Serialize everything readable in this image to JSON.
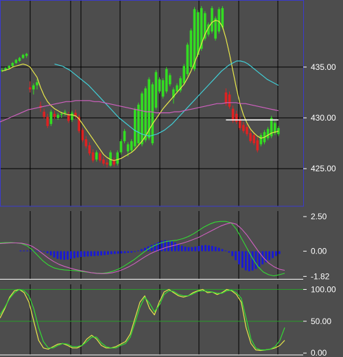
{
  "colors": {
    "background": "#4d4d4d",
    "grid": "#000000",
    "frame": "#3a3ad0",
    "tick_text": "#ffffff",
    "candle_up": "#33dd22",
    "candle_down": "#dd2222",
    "ma_fast": "#e8e84a",
    "ma_mid": "#40d0d8",
    "ma_slow": "#d060c0",
    "macd_line": "#d060c0",
    "macd_signal": "#33dd33",
    "macd_hist": "#1818d8",
    "stoch_k": "#e8e84a",
    "stoch_d": "#33dd33",
    "level_line": "#2aa02a",
    "hline": "#ffffff"
  },
  "chart_data": [
    {
      "type": "candlestick",
      "panel": "price",
      "ylim": [
        421.3,
        441.6
      ],
      "yticks": [
        {
          "value": 425,
          "label": "425.00"
        },
        {
          "value": 430,
          "label": "430.00"
        },
        {
          "value": 435,
          "label": "435.00"
        }
      ],
      "grid": true,
      "candles": [
        [
          434.6,
          434.9,
          434.5,
          434.7
        ],
        [
          434.7,
          435.0,
          434.6,
          434.9
        ],
        [
          434.9,
          435.2,
          434.8,
          435.1
        ],
        [
          435.1,
          435.5,
          435.0,
          435.4
        ],
        [
          435.4,
          435.8,
          435.3,
          435.7
        ],
        [
          435.6,
          436.0,
          435.5,
          435.9
        ],
        [
          435.9,
          436.3,
          435.8,
          436.2
        ],
        [
          436.1,
          436.4,
          435.9,
          436.3
        ],
        [
          433.0,
          433.6,
          432.5,
          432.8
        ],
        [
          432.8,
          433.4,
          432.3,
          433.2
        ],
        [
          433.2,
          433.8,
          432.8,
          433.5
        ],
        [
          431.2,
          431.6,
          430.6,
          431.0
        ],
        [
          430.6,
          430.9,
          429.9,
          430.1
        ],
        [
          430.1,
          430.4,
          429.0,
          429.2
        ],
        [
          429.4,
          430.8,
          429.2,
          430.6
        ],
        [
          430.4,
          430.7,
          429.9,
          430.1
        ],
        [
          430.0,
          430.5,
          429.8,
          430.3
        ],
        [
          430.3,
          430.6,
          430.0,
          430.4
        ],
        [
          430.5,
          430.8,
          430.2,
          430.6
        ],
        [
          430.3,
          430.6,
          429.5,
          429.7
        ],
        [
          429.8,
          430.7,
          429.6,
          430.5
        ],
        [
          430.5,
          430.8,
          429.9,
          430.2
        ],
        [
          430.1,
          430.3,
          428.5,
          428.7
        ],
        [
          428.8,
          429.0,
          427.6,
          427.8
        ],
        [
          427.9,
          428.2,
          427.0,
          427.2
        ],
        [
          427.3,
          427.6,
          426.3,
          426.5
        ],
        [
          426.6,
          426.9,
          425.6,
          425.8
        ],
        [
          425.9,
          426.8,
          425.7,
          426.6
        ],
        [
          426.5,
          426.7,
          425.6,
          425.8
        ],
        [
          425.9,
          426.2,
          425.3,
          425.5
        ],
        [
          425.6,
          425.9,
          425.1,
          425.4
        ],
        [
          425.3,
          426.8,
          425.2,
          426.6
        ],
        [
          425.8,
          426.1,
          425.2,
          425.4
        ],
        [
          425.5,
          426.8,
          425.3,
          426.6
        ],
        [
          426.6,
          427.9,
          426.4,
          427.7
        ],
        [
          427.7,
          428.9,
          427.5,
          428.7
        ],
        [
          426.7,
          427.6,
          426.2,
          427.4
        ],
        [
          426.8,
          427.9,
          426.6,
          427.7
        ],
        [
          427.2,
          431.0,
          427.0,
          430.8
        ],
        [
          427.5,
          431.5,
          427.3,
          431.3
        ],
        [
          427.4,
          432.6,
          427.2,
          432.4
        ],
        [
          427.8,
          433.1,
          427.6,
          432.9
        ],
        [
          428.0,
          434.0,
          427.8,
          433.8
        ],
        [
          427.5,
          433.5,
          427.3,
          433.3
        ],
        [
          431.0,
          434.7,
          430.8,
          434.5
        ],
        [
          432.6,
          434.0,
          432.4,
          433.8
        ],
        [
          432.1,
          433.9,
          431.9,
          433.7
        ],
        [
          432.6,
          435.0,
          432.4,
          434.8
        ],
        [
          433.3,
          434.4,
          433.1,
          434.2
        ],
        [
          432.0,
          433.0,
          431.4,
          432.8
        ],
        [
          432.6,
          433.4,
          432.4,
          433.2
        ],
        [
          432.7,
          434.1,
          432.5,
          433.9
        ],
        [
          433.4,
          435.3,
          433.2,
          435.1
        ],
        [
          434.3,
          437.4,
          434.1,
          437.2
        ],
        [
          435.0,
          438.8,
          434.8,
          438.6
        ],
        [
          434.8,
          440.9,
          434.6,
          440.7
        ],
        [
          436.2,
          440.6,
          436.0,
          440.4
        ],
        [
          436.8,
          441.0,
          436.6,
          440.8
        ],
        [
          437.8,
          440.5,
          437.6,
          440.3
        ],
        [
          438.2,
          439.4,
          438.0,
          439.2
        ],
        [
          438.5,
          441.0,
          438.3,
          440.8
        ],
        [
          437.8,
          440.0,
          437.6,
          439.8
        ],
        [
          438.5,
          440.9,
          438.3,
          440.7
        ],
        [
          438.9,
          441.0,
          438.7,
          440.8
        ],
        [
          432.5,
          432.9,
          431.2,
          431.4
        ],
        [
          432.3,
          432.6,
          430.9,
          431.1
        ],
        [
          430.9,
          431.2,
          429.5,
          429.7
        ],
        [
          430.4,
          430.7,
          429.4,
          429.6
        ],
        [
          429.8,
          430.1,
          428.8,
          429.0
        ],
        [
          429.3,
          429.6,
          428.5,
          428.7
        ],
        [
          429.1,
          429.4,
          428.2,
          428.4
        ],
        [
          428.5,
          428.8,
          427.5,
          427.7
        ],
        [
          428.3,
          428.6,
          427.3,
          427.5
        ],
        [
          427.8,
          428.1,
          426.6,
          426.8
        ],
        [
          427.4,
          428.5,
          427.2,
          428.3
        ],
        [
          427.6,
          428.8,
          427.4,
          428.6
        ],
        [
          428.0,
          429.1,
          427.8,
          428.9
        ],
        [
          428.2,
          430.2,
          428.0,
          430.0
        ],
        [
          428.5,
          429.7,
          428.3,
          429.5
        ],
        [
          428.4,
          429.2,
          428.2,
          429.0
        ]
      ],
      "series": [
        {
          "name": "",
          "color_key": "ma_fast",
          "values": [
            434.6,
            434.7,
            434.8,
            435.0,
            435.1,
            435.2,
            435.3,
            435.2,
            435.0,
            434.5,
            434.0,
            433.0,
            432.2,
            431.6,
            431.2,
            430.9,
            430.7,
            430.5,
            430.4,
            430.3,
            430.3,
            430.2,
            429.9,
            429.4,
            428.9,
            428.4,
            427.9,
            427.4,
            426.9,
            426.4,
            426.1,
            425.9,
            425.8,
            425.9,
            426.0,
            426.2,
            426.4,
            426.6,
            426.9,
            427.3,
            427.7,
            428.2,
            428.8,
            429.4,
            429.9,
            430.4,
            430.9,
            431.3,
            431.7,
            432.1,
            432.5,
            432.9,
            433.3,
            433.9,
            434.6,
            435.4,
            436.3,
            437.3,
            438.2,
            438.9,
            439.4,
            439.6,
            439.5,
            439.0,
            437.8,
            436.3,
            434.6,
            432.9,
            431.4,
            430.3,
            429.5,
            428.9,
            428.5,
            428.2,
            428.0,
            428.1,
            428.3,
            428.5,
            428.6,
            428.7
          ]
        },
        {
          "name": "",
          "color_key": "ma_mid",
          "values": [
            435.3,
            435.2,
            435.1,
            434.9,
            434.7,
            434.4,
            434.1,
            433.8,
            433.5,
            433.2,
            432.8,
            432.4,
            432.0,
            431.6,
            431.2,
            430.8,
            430.4,
            430.0,
            429.7,
            429.4,
            429.1,
            428.8,
            428.6,
            428.4,
            428.3,
            428.2,
            428.3,
            428.4,
            428.6,
            428.8,
            429.1,
            429.4,
            429.8,
            430.2,
            430.6,
            431.0,
            431.4,
            431.8,
            432.2,
            432.6,
            433.0,
            433.4,
            433.8,
            434.2,
            434.6,
            434.9,
            435.2,
            435.4,
            435.6,
            435.6,
            435.5,
            435.3,
            435.0,
            434.7,
            434.4,
            434.1,
            433.8,
            433.6,
            433.4,
            433.2
          ]
        },
        {
          "name": "",
          "color_key": "ma_slow",
          "values": [
            429.6,
            429.8,
            430.0,
            430.2,
            430.4,
            430.6,
            430.8,
            430.9,
            431.0,
            431.1,
            431.2,
            431.3,
            431.4,
            431.5,
            431.6,
            431.6,
            431.7,
            431.7,
            431.7,
            431.7,
            431.6,
            431.6,
            431.5,
            431.4,
            431.3,
            431.2,
            431.1,
            431.0,
            430.9,
            430.8,
            430.7,
            430.6,
            430.6,
            430.5,
            430.5,
            430.5,
            430.5,
            430.6,
            430.6,
            430.7,
            430.8,
            430.9,
            431.0,
            431.1,
            431.2,
            431.3,
            431.4,
            431.4,
            431.5,
            431.5,
            431.5,
            431.4,
            431.4,
            431.3,
            431.2,
            431.1,
            431.0,
            430.9,
            430.8,
            430.7
          ]
        }
      ],
      "hline": {
        "value": 429.8,
        "x_start_index": 64,
        "x_end_index": 79
      }
    },
    {
      "type": "line",
      "panel": "macd",
      "ylim": [
        -2.0,
        2.9
      ],
      "yticks": [
        {
          "value": 2.5,
          "label": "2.50"
        },
        {
          "value": 0.0,
          "label": "0.00"
        },
        {
          "value": -1.82,
          "label": "-1.82"
        }
      ],
      "histogram": [
        0.05,
        0.05,
        0.05,
        0.04,
        0.04,
        0.03,
        0.02,
        -0.05,
        -0.15,
        -0.3,
        -0.45,
        -0.55,
        -0.6,
        -0.62,
        -0.6,
        -0.55,
        -0.5,
        -0.45,
        -0.42,
        -0.4,
        -0.38,
        -0.36,
        -0.35,
        -0.33,
        -0.3,
        -0.28,
        -0.25,
        -0.22,
        -0.2,
        -0.18,
        -0.16,
        -0.14,
        -0.12,
        -0.1,
        -0.05,
        0.05,
        0.15,
        0.25,
        0.35,
        0.45,
        0.55,
        0.65,
        0.75,
        0.8,
        0.78,
        0.72,
        0.62,
        0.5,
        0.4,
        0.33,
        0.3,
        0.3,
        0.33,
        0.38,
        0.42,
        0.44,
        0.42,
        0.38,
        0.32,
        0.25,
        0.15,
        0.05,
        -0.1,
        -0.35,
        -0.65,
        -0.95,
        -1.2,
        -1.38,
        -1.45,
        -1.4,
        -1.28,
        -1.12,
        -0.95,
        -0.8,
        -0.65,
        -0.5,
        -0.35,
        -0.2
      ],
      "series": [
        {
          "name": "",
          "color_key": "macd_signal",
          "values": [
            0.6,
            0.62,
            0.63,
            0.6,
            0.55,
            0.4,
            0.1,
            -0.3,
            -0.7,
            -1.0,
            -1.2,
            -1.3,
            -1.35,
            -1.38,
            -1.4,
            -1.45,
            -1.5,
            -1.55,
            -1.58,
            -1.6,
            -1.55,
            -1.45,
            -1.3,
            -1.1,
            -0.85,
            -0.6,
            -0.3,
            0.0,
            0.25,
            0.45,
            0.6,
            0.7,
            0.75,
            0.8,
            0.9,
            1.05,
            1.25,
            1.5,
            1.75,
            1.95,
            2.1,
            2.15,
            2.15,
            2.05,
            1.6,
            0.9,
            0.2,
            -0.5,
            -1.1,
            -1.5,
            -1.7,
            -1.78,
            -1.7,
            -1.6
          ]
        },
        {
          "name": "",
          "color_key": "macd_line",
          "values": [
            0.55,
            0.58,
            0.6,
            0.6,
            0.58,
            0.5,
            0.35,
            0.1,
            -0.2,
            -0.5,
            -0.75,
            -0.95,
            -1.1,
            -1.22,
            -1.32,
            -1.4,
            -1.48,
            -1.55,
            -1.6,
            -1.62,
            -1.6,
            -1.55,
            -1.45,
            -1.3,
            -1.12,
            -0.9,
            -0.65,
            -0.4,
            -0.18,
            0.0,
            0.15,
            0.28,
            0.38,
            0.48,
            0.58,
            0.7,
            0.85,
            1.0,
            1.2,
            1.4,
            1.6,
            1.8,
            1.95,
            2.05,
            1.95,
            1.6,
            1.15,
            0.6,
            0.05,
            -0.45,
            -0.85,
            -1.12,
            -1.3,
            -1.38
          ]
        }
      ]
    },
    {
      "type": "line",
      "panel": "stochastic",
      "ylim": [
        -3,
        108
      ],
      "yticks": [
        {
          "value": 100,
          "label": "100.00"
        },
        {
          "value": 50,
          "label": "50.00"
        },
        {
          "value": 0,
          "label": "0.00"
        }
      ],
      "levels": [
        100,
        50
      ],
      "series": [
        {
          "name": "",
          "color_key": "stoch_k",
          "values": [
            55,
            70,
            88,
            98,
            100,
            95,
            80,
            50,
            20,
            8,
            6,
            10,
            14,
            15,
            12,
            8,
            8,
            12,
            22,
            28,
            22,
            12,
            8,
            8,
            10,
            14,
            18,
            30,
            55,
            80,
            90,
            70,
            60,
            80,
            96,
            100,
            95,
            90,
            88,
            90,
            95,
            98,
            100,
            95,
            96,
            92,
            95,
            100,
            98,
            92,
            80,
            40,
            15,
            5,
            4,
            5,
            6,
            8,
            12,
            20
          ]
        },
        {
          "name": "",
          "color_key": "stoch_d",
          "values": [
            60,
            72,
            86,
            95,
            100,
            98,
            90,
            70,
            40,
            18,
            8,
            8,
            12,
            15,
            14,
            10,
            10,
            12,
            18,
            25,
            25,
            16,
            10,
            8,
            8,
            12,
            15,
            25,
            48,
            72,
            88,
            78,
            65,
            75,
            92,
            98,
            97,
            92,
            90,
            90,
            93,
            97,
            98,
            97,
            96,
            94,
            94,
            98,
            99,
            95,
            86,
            55,
            22,
            8,
            5,
            5,
            6,
            10,
            20,
            40
          ]
        }
      ]
    }
  ]
}
